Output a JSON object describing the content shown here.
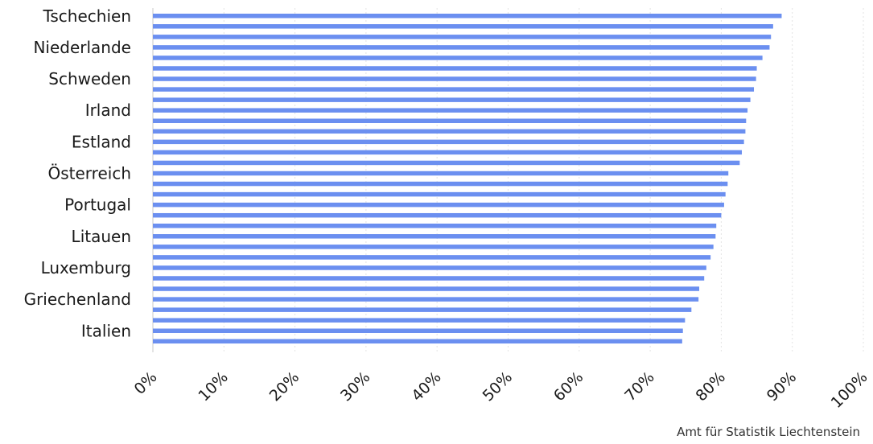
{
  "chart_data": {
    "type": "bar",
    "orientation": "horizontal",
    "title": "",
    "xlabel": "",
    "ylabel": "",
    "xlim": [
      0,
      100
    ],
    "x_unit": "%",
    "grid": true,
    "bar_color": "#6b8ff0",
    "grid_color": "#e3e3e3",
    "categories": [
      "Tschechien",
      "",
      "",
      "Niederlande",
      "",
      "",
      "Schweden",
      "",
      "",
      "Irland",
      "",
      "",
      "Estland",
      "",
      "",
      "Österreich",
      "",
      "",
      "Portugal",
      "",
      "",
      "Litauen",
      "",
      "",
      "Luxemburg",
      "",
      "",
      "Griechenland",
      "",
      "",
      "Italien",
      ""
    ],
    "values": [
      88.5,
      87.3,
      87.0,
      86.8,
      85.8,
      85.0,
      84.9,
      84.6,
      84.1,
      83.7,
      83.5,
      83.4,
      83.2,
      82.9,
      82.6,
      81.0,
      80.9,
      80.6,
      80.4,
      80.0,
      79.3,
      79.2,
      78.9,
      78.5,
      77.9,
      77.6,
      76.9,
      76.8,
      75.8,
      74.9,
      74.6,
      74.5
    ],
    "tick_labels": [
      "0%",
      "10%",
      "20%",
      "30%",
      "40%",
      "50%",
      "60%",
      "70%",
      "80%",
      "90%",
      "100%"
    ]
  },
  "source": "Amt für Statistik Liechtenstein"
}
